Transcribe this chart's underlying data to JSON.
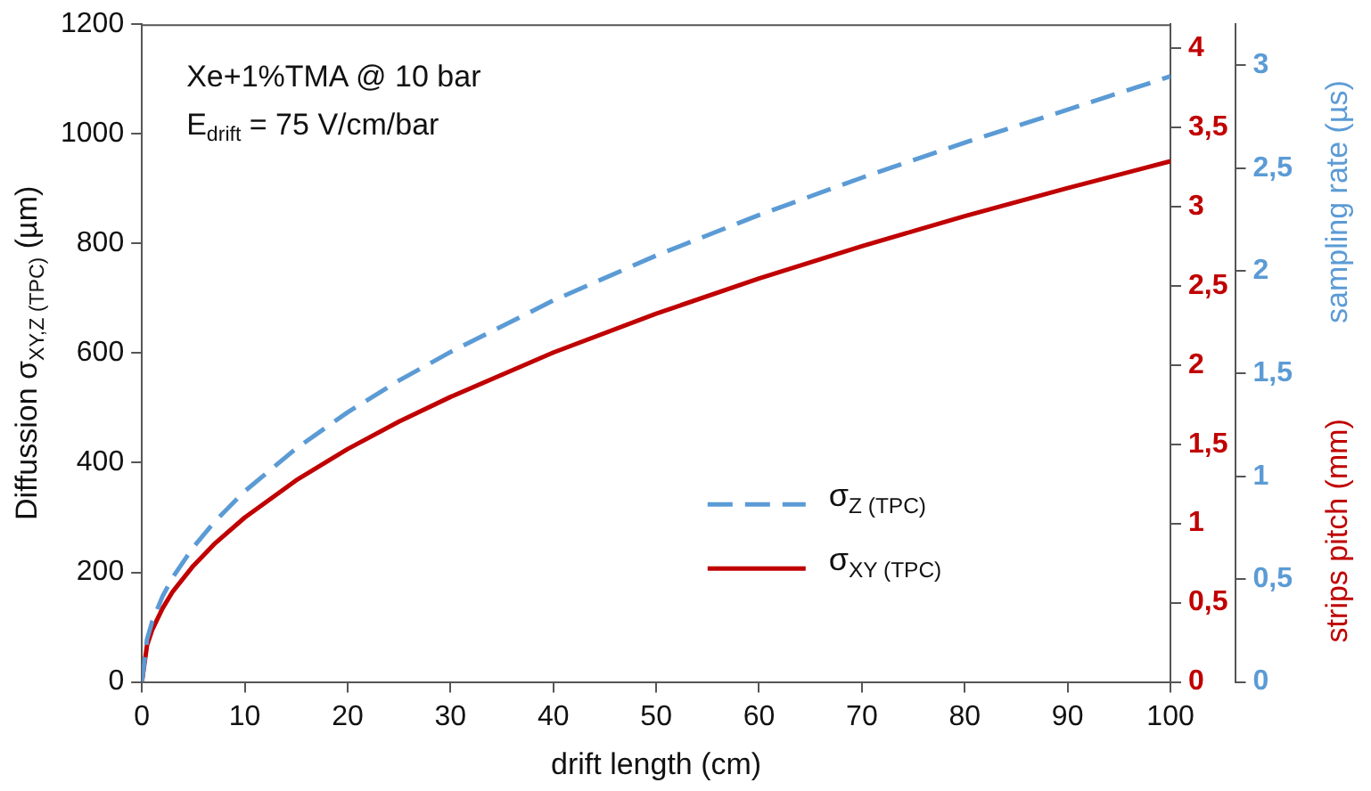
{
  "chart_data": {
    "type": "line",
    "xlabel": "drift length (cm)",
    "ylabel": "Diffussion σ$_{XY,Z (TPC)}$ (µm)",
    "y2label": "strips pitch (mm)",
    "y3label": "sampling rate (µs)",
    "annotations": [
      "Xe+1%TMA @ 10 bar",
      "E$_{drift}$ = 75 V/cm/bar"
    ],
    "x": [
      0,
      0.5,
      1,
      2,
      3,
      5,
      7,
      10,
      15,
      20,
      25,
      30,
      40,
      50,
      60,
      70,
      80,
      90,
      100
    ],
    "series": [
      {
        "name": "σ$_{Z (TPC)}$",
        "color": "#5b9bd5",
        "line_style": "dashed",
        "values": [
          0,
          78,
          110,
          156,
          191,
          246,
          291,
          348,
          426,
          492,
          550,
          602,
          696,
          778,
          852,
          920,
          984,
          1044,
          1105
        ]
      },
      {
        "name": "σ$_{XY (TPC)}$",
        "color": "#c00000",
        "line_style": "solid",
        "values": [
          0,
          67,
          95,
          134,
          165,
          212,
          251,
          300,
          368,
          425,
          475,
          520,
          601,
          672,
          736,
          795,
          850,
          901,
          950
        ]
      }
    ],
    "xlim": [
      0,
      100
    ],
    "xticks": [
      0,
      10,
      20,
      30,
      40,
      50,
      60,
      70,
      80,
      90,
      100
    ],
    "ylim": [
      0,
      1200
    ],
    "yticks": [
      0,
      200,
      400,
      600,
      800,
      1000,
      1200
    ],
    "y2lim": [
      0,
      4.15
    ],
    "y2ticks": [
      0,
      {
        "value": 0.5,
        "label": "0,5"
      },
      1,
      {
        "value": 1.5,
        "label": "1,5"
      },
      2,
      {
        "value": 2.5,
        "label": "2,5"
      },
      3,
      {
        "value": 3.5,
        "label": "3,5"
      },
      4
    ],
    "y3lim": [
      0,
      3.2
    ],
    "y3ticks": [
      0,
      {
        "value": 0.5,
        "label": "0,5"
      },
      1,
      {
        "value": 1.5,
        "label": "1,5"
      },
      2,
      {
        "value": 2.5,
        "label": "2,5"
      },
      3
    ],
    "grid": false,
    "legend": "bottom right",
    "marker": "none"
  }
}
